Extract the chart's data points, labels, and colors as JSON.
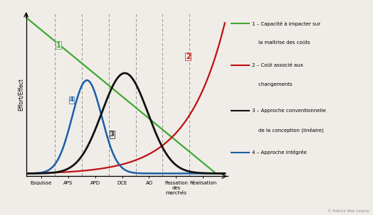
{
  "ylabel": "Effort/Effect",
  "background_color": "#f0ede8",
  "phase_labels": [
    "Esquisse",
    "APS",
    "APD",
    "DCE",
    "AO",
    "Passation\ndes\nmarchés",
    "Réalisation"
  ],
  "phase_tick_x": [
    0.5,
    1.5,
    2.5,
    3.5,
    4.5,
    5.5,
    6.5
  ],
  "dashed_x": [
    1.0,
    2.0,
    3.0,
    4.0,
    5.0,
    6.0
  ],
  "curve1_label_line1": "1 – Capacité à impacter sur",
  "curve1_label_line2": "    la maîtrise des coûts",
  "curve2_label_line1": "2 – Coût associé aux",
  "curve2_label_line2": "    changements",
  "curve3_label_line1": "3 – Approche conventionnelle",
  "curve3_label_line2": "    de la conception (linéaire)",
  "curve4_label": "4 – Approche intégrée",
  "curve1_color": "#3fa832",
  "curve2_color": "#c01010",
  "curve3_color": "#111111",
  "curve4_color": "#1a5fa8",
  "watermark": "© Patrick Mac Leamy",
  "xlim": [
    -0.05,
    7.4
  ],
  "ylim": [
    -0.02,
    1.12
  ]
}
